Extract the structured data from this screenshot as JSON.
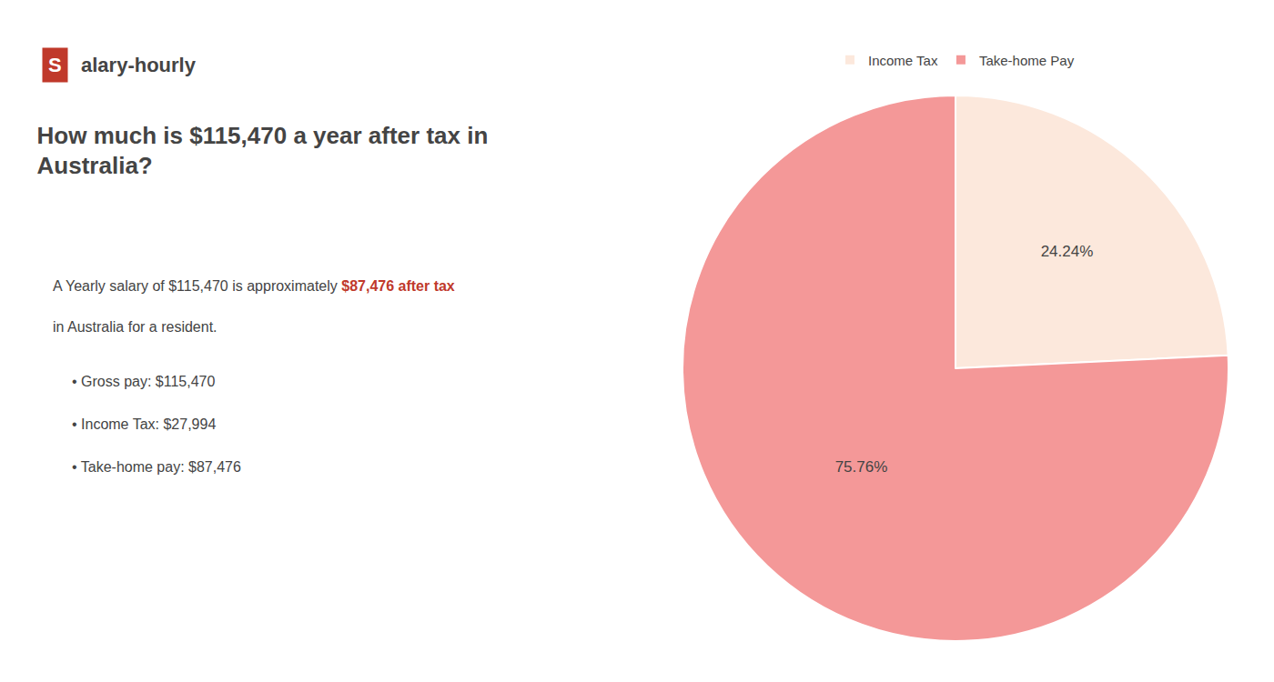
{
  "chart_data": {
    "type": "pie",
    "title": [
      "How much is $115,470 a year after tax in",
      "Australia?"
    ],
    "categories": [
      "Income Tax",
      "Take-home Pay"
    ],
    "values": [
      24.24,
      75.76
    ],
    "value_labels": [
      "24.24%",
      "75.76%"
    ],
    "colors": [
      "#fce8dc",
      "#f49898"
    ],
    "data_labels": true,
    "legend": "top",
    "annotations": [
      {
        "text": "S",
        "color": "#c0392b"
      },
      {
        "text": "alary-hourly"
      },
      {
        "text": "A Yearly salary of $115,470 is approximately "
      },
      {
        "text": "$87,476 after tax",
        "color": "#c0392b"
      },
      {
        "text": "in Australia for a resident."
      },
      {
        "text": "• Gross pay: $115,470"
      },
      {
        "text": "• Income Tax: $27,994"
      },
      {
        "text": "• Take-home pay: $87,476"
      }
    ]
  }
}
